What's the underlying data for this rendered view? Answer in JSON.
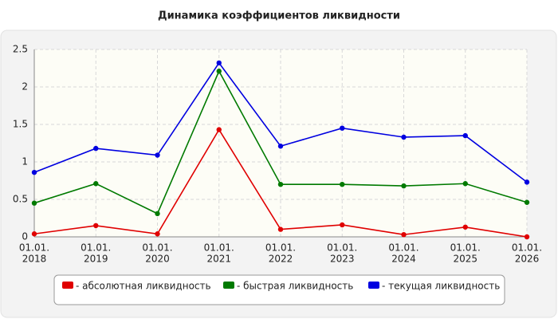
{
  "chart_data": {
    "type": "line",
    "title": "Динамика коэффициентов ликвидности",
    "categories": [
      [
        "01.01.",
        "2018"
      ],
      [
        "01.01.",
        "2019"
      ],
      [
        "01.01.",
        "2020"
      ],
      [
        "01.01.",
        "2021"
      ],
      [
        "01.01.",
        "2022"
      ],
      [
        "01.01.",
        "2023"
      ],
      [
        "01.01.",
        "2024"
      ],
      [
        "01.01.",
        "2025"
      ],
      [
        "01.01.",
        "2026"
      ]
    ],
    "series": [
      {
        "name": "- абсолютная ликвидность",
        "color": "#e00000",
        "values": [
          0.04,
          0.15,
          0.04,
          1.43,
          0.1,
          0.16,
          0.03,
          0.13,
          0.0
        ]
      },
      {
        "name": "- быстрая ликвидность",
        "color": "#007a00",
        "values": [
          0.45,
          0.71,
          0.31,
          2.21,
          0.7,
          0.7,
          0.68,
          0.71,
          0.46
        ]
      },
      {
        "name": "- текущая ликвидность",
        "color": "#0000e0",
        "values": [
          0.86,
          1.18,
          1.09,
          2.32,
          1.21,
          1.45,
          1.33,
          1.35,
          0.73
        ]
      }
    ],
    "ylim": [
      0,
      2.5
    ],
    "yticks": [
      0,
      0.5,
      1,
      1.5,
      2,
      2.5
    ],
    "grid": true,
    "legend": "bottom"
  }
}
